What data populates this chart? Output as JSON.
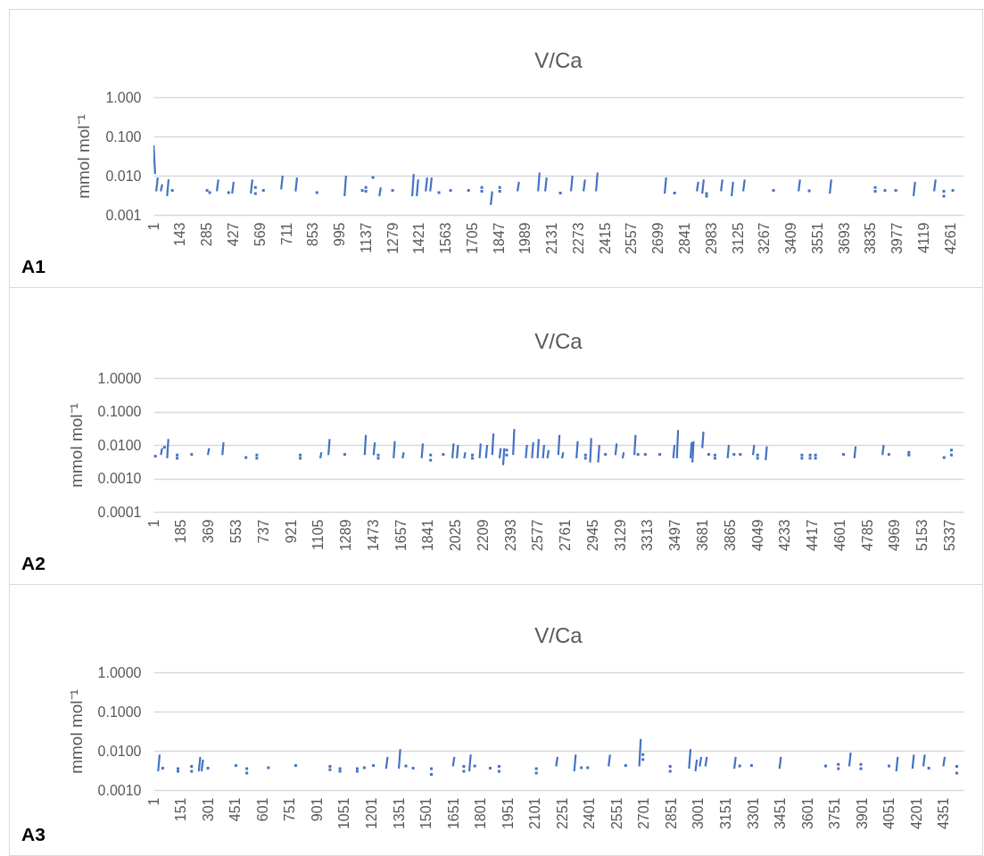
{
  "chart_data": [
    {
      "type": "line",
      "title": "V/Ca",
      "ylabel": "mmol mol⁻¹",
      "annotations": [
        "A1"
      ],
      "log": "y",
      "grid": "y",
      "xlim": [
        0,
        4332
      ],
      "xticks": [
        1,
        143,
        285,
        427,
        569,
        711,
        853,
        995,
        1137,
        1279,
        1421,
        1563,
        1705,
        1847,
        1989,
        2131,
        2273,
        2415,
        2557,
        2699,
        2841,
        2983,
        3125,
        3267,
        3409,
        3551,
        3693,
        3835,
        3977,
        4119,
        4261
      ],
      "ylim": [
        0.001,
        1
      ],
      "yticks": [
        {
          "value": 0.001,
          "label": "0.001"
        },
        {
          "value": 0.01,
          "label": "0.010"
        },
        {
          "value": 0.1,
          "label": "0.100"
        },
        {
          "value": 1,
          "label": "1.000"
        }
      ],
      "series": [
        {
          "color": "#4472c4",
          "x": [
            1,
            9,
            10,
            15,
            23,
            24,
            39,
            47,
            48,
            73,
            81,
            82,
            339,
            347,
            348,
            421,
            429,
            430,
            521,
            529,
            530,
            683,
            691,
            692,
            760,
            768,
            769,
            1022,
            1030,
            1031,
            1208,
            1216,
            1217,
            1384,
            1392,
            1393,
            1408,
            1416,
            1417,
            1456,
            1464,
            1465,
            1480,
            1488,
            1489,
            1804,
            1812,
            1813,
            1947,
            1955,
            1956,
            2057,
            2065,
            2066,
            2095,
            2103,
            2104,
            2233,
            2241,
            2242,
            2300,
            2308,
            2309,
            2367,
            2375,
            2376,
            2734,
            2742,
            2743,
            2906,
            2914,
            2915,
            2935,
            2943,
            2944,
            3035,
            3043,
            3044,
            3092,
            3100,
            3101,
            3154,
            3162,
            3163,
            3450,
            3458,
            3459,
            3617,
            3625,
            3626,
            4065,
            4073,
            4074,
            4175,
            4183
          ],
          "values": [
            0.06,
            0.011,
            null,
            0.004,
            0.009,
            null,
            0.004,
            0.006,
            null,
            0.003,
            0.008,
            null,
            0.004,
            0.008,
            null,
            0.0035,
            0.007,
            null,
            0.0035,
            0.008,
            null,
            0.0045,
            0.01,
            null,
            0.004,
            0.009,
            null,
            0.003,
            0.01,
            null,
            0.003,
            0.005,
            null,
            0.003,
            0.011,
            null,
            0.003,
            0.008,
            null,
            0.004,
            0.009,
            null,
            0.004,
            0.009,
            null,
            0.0018,
            0.004,
            null,
            0.004,
            0.007,
            null,
            0.004,
            0.012,
            null,
            0.004,
            0.009,
            null,
            0.004,
            0.01,
            null,
            0.004,
            0.008,
            null,
            0.004,
            0.012,
            null,
            0.0035,
            0.009,
            null,
            0.004,
            0.007,
            null,
            0.0035,
            0.008,
            null,
            0.004,
            0.008,
            null,
            0.003,
            0.007,
            null,
            0.004,
            0.008,
            null,
            0.004,
            0.008,
            null,
            0.0035,
            0.008,
            null,
            0.003,
            0.007,
            null,
            0.004,
            0.008
          ]
        },
        {
          "type": "scatter",
          "marker": "square",
          "color": "#4472c4",
          "x": [
            101,
            287,
            301,
            402,
            545,
            545,
            588,
            874,
            1117,
            1136,
            1136,
            1174,
            1279,
            1527,
            1589,
            1685,
            1756,
            1756,
            1852,
            1852,
            2176,
            2787,
            2958,
            2958,
            3316,
            3507,
            3860,
            3860,
            3912,
            3970,
            4227,
            4227,
            4275
          ],
          "values": [
            0.0042,
            0.0042,
            0.0037,
            0.0037,
            0.0035,
            0.005,
            0.0042,
            0.0037,
            0.0042,
            0.004,
            0.005,
            0.009,
            0.0042,
            0.0037,
            0.0042,
            0.0042,
            0.004,
            0.005,
            0.004,
            0.005,
            0.0036,
            0.0036,
            0.003,
            0.0035,
            0.0042,
            0.0041,
            0.004,
            0.005,
            0.0042,
            0.0042,
            0.003,
            0.004,
            0.0042
          ]
        }
      ]
    },
    {
      "type": "line",
      "title": "V/Ca",
      "ylabel": "mmol mol⁻¹",
      "annotations": [
        "A2"
      ],
      "log": "y",
      "grid": "y",
      "xlim": [
        0,
        5430
      ],
      "xticks": [
        1,
        185,
        369,
        553,
        737,
        921,
        1105,
        1289,
        1473,
        1657,
        1841,
        2025,
        2209,
        2393,
        2577,
        2761,
        2945,
        3129,
        3313,
        3497,
        3681,
        3865,
        4049,
        4233,
        4417,
        4601,
        4785,
        4969,
        5153,
        5337
      ],
      "ylim": [
        0.0001,
        1
      ],
      "yticks": [
        {
          "value": 0.0001,
          "label": "0.0001"
        },
        {
          "value": 0.001,
          "label": "0.0010"
        },
        {
          "value": 0.01,
          "label": "0.0100"
        },
        {
          "value": 0.1,
          "label": "0.1000"
        },
        {
          "value": 1,
          "label": "1.0000"
        }
      ],
      "series": [
        {
          "color": "#4472c4",
          "x": [
            50,
            58,
            59,
            92,
            100,
            101,
            365,
            373,
            374,
            462,
            470,
            471,
            1118,
            1126,
            1127,
            1173,
            1181,
            1182,
            1416,
            1424,
            1425,
            1476,
            1484,
            1485,
            1610,
            1618,
            1619,
            1670,
            1678,
            1679,
            1798,
            1806,
            1807,
            2004,
            2012,
            2013,
            2034,
            2042,
            2043,
            2083,
            2091,
            2092,
            2186,
            2194,
            2195,
            2229,
            2237,
            2238,
            2271,
            2279,
            2280,
            2320,
            2328,
            2329,
            2344,
            2352,
            2353,
            2411,
            2419,
            2420,
            2496,
            2504,
            2505,
            2538,
            2546,
            2547,
            2575,
            2583,
            2584,
            2611,
            2619,
            2620,
            2641,
            2649,
            2650,
            2714,
            2722,
            2723,
            2739,
            2747,
            2748,
            2836,
            2844,
            2845,
            2927,
            2935,
            2936,
            2981,
            2989,
            2990,
            3097,
            3105,
            3106,
            3145,
            3153,
            3154,
            3224,
            3232,
            3233,
            3485,
            3493,
            3494,
            3509,
            3517,
            3518,
            3600,
            3608,
            3609,
            3613,
            3621,
            3622,
            3679,
            3687,
            3688,
            3849,
            3857,
            3858,
            4019,
            4027,
            4028,
            4104,
            4112,
            4113,
            4699,
            4707,
            4708,
            4887,
            4895
          ],
          "values": [
            0.005,
            0.008,
            null,
            0.004,
            0.015,
            null,
            0.005,
            0.008,
            null,
            0.005,
            0.012,
            null,
            0.004,
            0.006,
            null,
            0.005,
            0.015,
            null,
            0.005,
            0.02,
            null,
            0.005,
            0.012,
            null,
            0.004,
            0.013,
            null,
            0.004,
            0.006,
            null,
            0.004,
            0.011,
            null,
            0.004,
            0.011,
            null,
            0.004,
            0.01,
            null,
            0.004,
            0.006,
            null,
            0.004,
            0.011,
            null,
            0.004,
            0.01,
            null,
            0.005,
            0.022,
            null,
            0.004,
            0.008,
            null,
            0.0025,
            0.008,
            null,
            0.005,
            0.03,
            null,
            0.004,
            0.01,
            null,
            0.004,
            0.012,
            null,
            0.004,
            0.015,
            null,
            0.004,
            0.01,
            null,
            0.004,
            0.007,
            null,
            0.005,
            0.02,
            null,
            0.004,
            0.006,
            null,
            0.004,
            0.013,
            null,
            0.003,
            0.016,
            null,
            0.003,
            0.01,
            null,
            0.005,
            0.011,
            null,
            0.004,
            0.006,
            null,
            0.005,
            0.02,
            null,
            0.004,
            0.01,
            null,
            0.004,
            0.028,
            null,
            0.004,
            0.012,
            null,
            0.003,
            0.013,
            null,
            0.008,
            0.025,
            null,
            0.004,
            0.01,
            null,
            0.005,
            0.01,
            null,
            0.0035,
            0.009,
            null,
            0.004,
            0.009,
            null,
            0.005,
            0.01
          ]
        },
        {
          "type": "scatter",
          "marker": "square",
          "color": "#4472c4",
          "x": [
            13,
            74,
            159,
            159,
            256,
            620,
            693,
            693,
            984,
            984,
            1282,
            1507,
            1507,
            1858,
            1858,
            1943,
            2138,
            2138,
            2368,
            2368,
            2896,
            2896,
            3030,
            3248,
            3297,
            3394,
            3722,
            3764,
            3764,
            3892,
            3934,
            4050,
            4050,
            4347,
            4347,
            4402,
            4402,
            4438,
            4438,
            4626,
            4930,
            5064,
            5064,
            5300,
            5349,
            5349
          ],
          "values": [
            0.0046,
            0.0085,
            0.004,
            0.005,
            0.0052,
            0.0042,
            0.004,
            0.005,
            0.004,
            0.005,
            0.0052,
            0.004,
            0.005,
            0.0035,
            0.005,
            0.0052,
            0.004,
            0.005,
            0.005,
            0.007,
            0.004,
            0.005,
            0.0052,
            0.0052,
            0.0052,
            0.0052,
            0.0052,
            0.004,
            0.005,
            0.0052,
            0.0052,
            0.004,
            0.005,
            0.004,
            0.005,
            0.004,
            0.005,
            0.004,
            0.005,
            0.0052,
            0.0052,
            0.005,
            0.006,
            0.0042,
            0.005,
            0.007
          ]
        }
      ]
    },
    {
      "type": "line",
      "title": "V/Ca",
      "ylabel": "mmol mol⁻¹",
      "annotations": [
        "A3"
      ],
      "log": "y",
      "grid": "y",
      "xlim": [
        0,
        4460
      ],
      "xticks": [
        1,
        151,
        301,
        451,
        601,
        751,
        901,
        1051,
        1201,
        1351,
        1501,
        1651,
        1801,
        1951,
        2101,
        2251,
        2401,
        2551,
        2701,
        2851,
        3001,
        3151,
        3301,
        3451,
        3601,
        3751,
        3901,
        4051,
        4201,
        4351
      ],
      "ylim": [
        0.001,
        1
      ],
      "yticks": [
        {
          "value": 0.001,
          "label": "0.0010"
        },
        {
          "value": 0.01,
          "label": "0.0100"
        },
        {
          "value": 0.1,
          "label": "0.1000"
        },
        {
          "value": 1,
          "label": "1.0000"
        }
      ],
      "series": [
        {
          "color": "#4472c4",
          "x": [
            26,
            34,
            35,
            250,
            258,
            259,
            265,
            273,
            274,
            1281,
            1289,
            1290,
            1351,
            1359,
            1360,
            1649,
            1657,
            1658,
            1739,
            1747,
            1748,
            2217,
            2225,
            2226,
            2317,
            2325,
            2326,
            2506,
            2514,
            2515,
            2675,
            2683,
            2684,
            2949,
            2957,
            2958,
            2984,
            2992,
            2993,
            3008,
            3016,
            3017,
            3039,
            3047,
            3048,
            3198,
            3206,
            3207,
            3447,
            3455,
            3456,
            3831,
            3839,
            3840,
            4090,
            4098,
            4099,
            4179,
            4187,
            4188,
            4239,
            4247,
            4248,
            4349,
            4357
          ],
          "values": [
            0.003,
            0.008,
            null,
            0.003,
            0.007,
            null,
            0.003,
            0.006,
            null,
            0.0035,
            0.007,
            null,
            0.0035,
            0.011,
            null,
            0.004,
            0.007,
            null,
            0.003,
            0.008,
            null,
            0.004,
            0.007,
            null,
            0.003,
            0.008,
            null,
            0.004,
            0.008,
            null,
            0.004,
            0.02,
            null,
            0.0035,
            0.011,
            null,
            0.003,
            0.006,
            null,
            0.004,
            0.007,
            null,
            0.004,
            0.007,
            null,
            0.0035,
            0.007,
            null,
            0.0035,
            0.007,
            null,
            0.004,
            0.009,
            null,
            0.003,
            0.007,
            null,
            0.0035,
            0.008,
            null,
            0.004,
            0.008,
            null,
            0.004,
            0.007
          ]
        },
        {
          "type": "scatter",
          "marker": "square",
          "color": "#4472c4",
          "x": [
            51,
            135,
            135,
            210,
            210,
            300,
            454,
            514,
            514,
            633,
            783,
            972,
            972,
            1027,
            1027,
            1122,
            1122,
            1161,
            1211,
            1390,
            1430,
            1530,
            1530,
            1709,
            1709,
            1769,
            1854,
            1903,
            1903,
            2108,
            2108,
            2356,
            2391,
            2600,
            2695,
            2695,
            2845,
            2845,
            3228,
            3293,
            3701,
            3771,
            3771,
            3895,
            3895,
            4050,
            4269,
            4423,
            4423
          ],
          "values": [
            0.0036,
            0.003,
            0.0035,
            0.003,
            0.004,
            0.0036,
            0.0042,
            0.0027,
            0.0035,
            0.0037,
            0.0042,
            0.0033,
            0.004,
            0.003,
            0.0035,
            0.003,
            0.0035,
            0.0037,
            0.0042,
            0.0041,
            0.0036,
            0.0025,
            0.0035,
            0.003,
            0.004,
            0.0041,
            0.0036,
            0.003,
            0.004,
            0.0027,
            0.0035,
            0.0037,
            0.0037,
            0.0042,
            0.006,
            0.008,
            0.003,
            0.004,
            0.0041,
            0.0042,
            0.0041,
            0.0035,
            0.0045,
            0.0035,
            0.0045,
            0.0041,
            0.0036,
            0.0027,
            0.004
          ]
        }
      ]
    }
  ]
}
